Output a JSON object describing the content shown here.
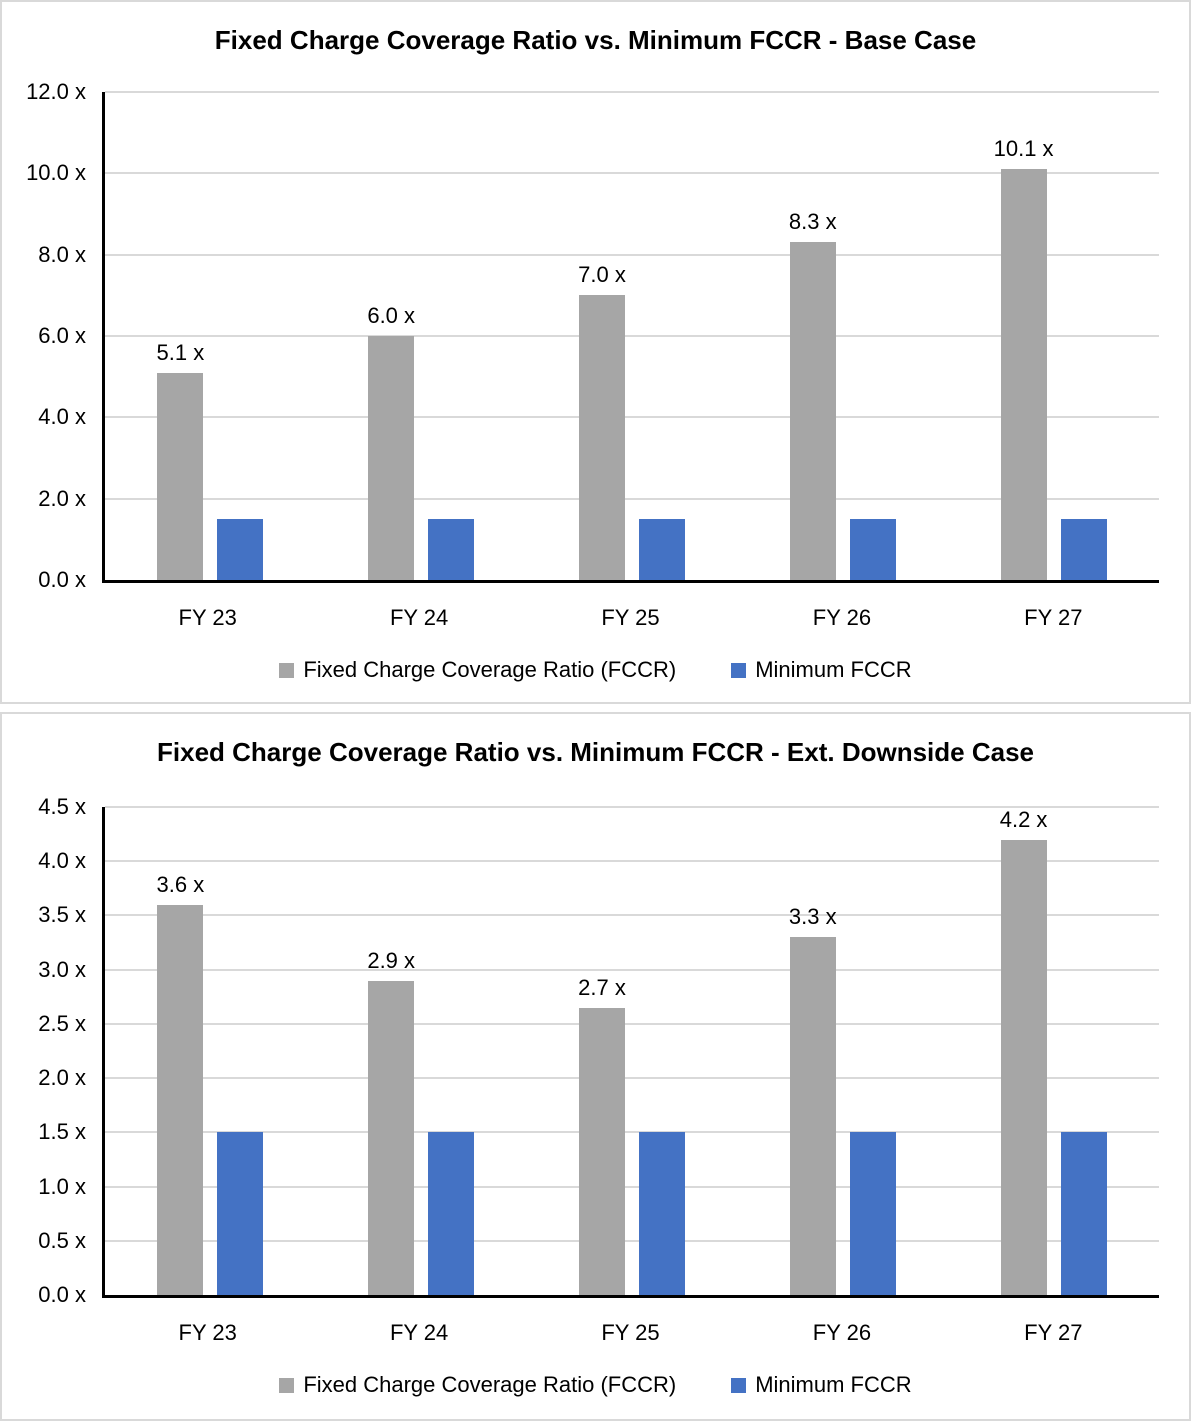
{
  "colors": {
    "fccr_gray": "#a6a6a6",
    "min_blue": "#4472c4",
    "gridline": "#d9d9d9",
    "axis": "#000000",
    "panel_border": "#d9d9d9"
  },
  "legend": {
    "fccr_label": "Fixed Charge Coverage Ratio (FCCR)",
    "min_label": "Minimum FCCR"
  },
  "chart_data": [
    {
      "type": "bar",
      "title": "Fixed Charge Coverage Ratio vs. Minimum FCCR - Base Case",
      "categories": [
        "FY 23",
        "FY 24",
        "FY 25",
        "FY 26",
        "FY 27"
      ],
      "series": [
        {
          "name": "Fixed Charge Coverage Ratio (FCCR)",
          "color_key": "fccr_gray",
          "values": [
            5.1,
            6.0,
            7.0,
            8.3,
            10.1
          ],
          "labels": [
            "5.1 x",
            "6.0 x",
            "7.0 x",
            "8.3 x",
            "10.1 x"
          ],
          "show_labels": true
        },
        {
          "name": "Minimum FCCR",
          "color_key": "min_blue",
          "values": [
            1.5,
            1.5,
            1.5,
            1.5,
            1.5
          ],
          "show_labels": false
        }
      ],
      "y_axis": {
        "min": 0,
        "max": 12,
        "step": 2,
        "tick_labels": [
          "12.0 x",
          "10.0 x",
          "8.0 x",
          "6.0 x",
          "4.0 x",
          "2.0 x",
          "0.0 x"
        ]
      },
      "ylim": [
        0,
        12
      ],
      "grid": true,
      "legend_position": "bottom"
    },
    {
      "type": "bar",
      "title": "Fixed Charge Coverage Ratio vs. Minimum FCCR - Ext. Downside Case",
      "categories": [
        "FY 23",
        "FY 24",
        "FY 25",
        "FY 26",
        "FY 27"
      ],
      "series": [
        {
          "name": "Fixed Charge Coverage Ratio (FCCR)",
          "color_key": "fccr_gray",
          "values": [
            3.6,
            2.9,
            2.65,
            3.3,
            4.2
          ],
          "labels": [
            "3.6 x",
            "2.9 x",
            "2.7 x",
            "3.3 x",
            "4.2 x"
          ],
          "show_labels": true
        },
        {
          "name": "Minimum FCCR",
          "color_key": "min_blue",
          "values": [
            1.5,
            1.5,
            1.5,
            1.5,
            1.5
          ],
          "show_labels": false
        }
      ],
      "y_axis": {
        "min": 0,
        "max": 4.5,
        "step": 0.5,
        "tick_labels": [
          "4.5 x",
          "4.0 x",
          "3.5 x",
          "3.0 x",
          "2.5 x",
          "2.0 x",
          "1.5 x",
          "1.0 x",
          "0.5 x",
          "0.0 x"
        ]
      },
      "ylim": [
        0,
        4.5
      ],
      "grid": true,
      "legend_position": "bottom"
    }
  ]
}
